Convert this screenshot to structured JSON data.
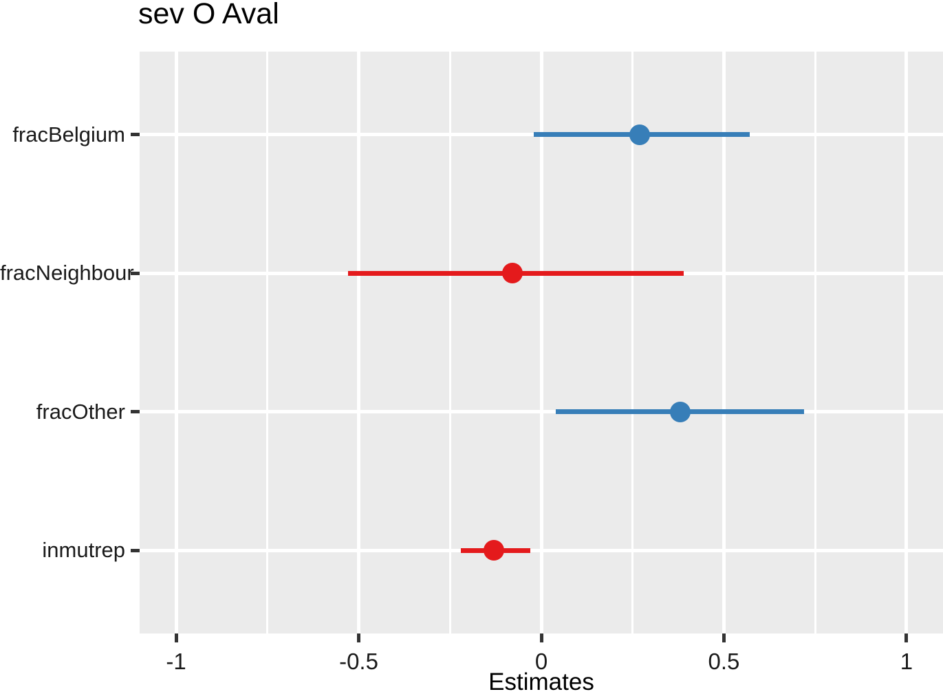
{
  "title": "sev O Aval",
  "chart_data": {
    "type": "scatter",
    "subtype": "forest-coefficient-plot",
    "title": "sev O Aval",
    "xlabel": "Estimates",
    "ylabel": "",
    "xlim": [
      -1.1,
      1.1
    ],
    "x_major_ticks": [
      -1,
      -0.5,
      0,
      0.5,
      1
    ],
    "x_tick_labels": [
      "-1",
      "-0.5",
      "0",
      "0.5",
      "1"
    ],
    "x_minor_ticks": [
      -0.75,
      -0.25,
      0.25,
      0.75
    ],
    "categories": [
      "fracBelgium",
      "fracNeighbour",
      "fracOther",
      "inmutrep"
    ],
    "points": [
      {
        "term": "fracBelgium",
        "estimate": 0.27,
        "ci_low": -0.02,
        "ci_high": 0.57,
        "color": "#377EB8"
      },
      {
        "term": "fracNeighbour",
        "estimate": -0.08,
        "ci_low": -0.53,
        "ci_high": 0.39,
        "color": "#E41A1C"
      },
      {
        "term": "fracOther",
        "estimate": 0.38,
        "ci_low": 0.04,
        "ci_high": 0.72,
        "color": "#377EB8"
      },
      {
        "term": "inmutrep",
        "estimate": -0.13,
        "ci_low": -0.22,
        "ci_high": -0.03,
        "color": "#E41A1C"
      }
    ],
    "grid": true,
    "legend_position": "none",
    "colors": {
      "positive": "#377EB8",
      "negative": "#E41A1C",
      "panel_background": "#EBEBEB",
      "gridline": "#FFFFFF",
      "tick_mark": "#333333",
      "text": "#1a1a1a"
    }
  }
}
